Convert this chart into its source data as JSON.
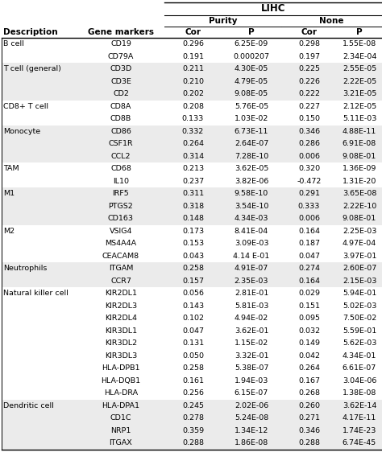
{
  "title": "LIHC",
  "rows": [
    [
      "B cell",
      "CD19",
      "0.296",
      "6.25E-09",
      "0.298",
      "1.55E-08"
    ],
    [
      "",
      "CD79A",
      "0.191",
      "0.000207",
      "0.197",
      "2.34E-04"
    ],
    [
      "T cell (general)",
      "CD3D",
      "0.211",
      "4.30E-05",
      "0.225",
      "2.55E-05"
    ],
    [
      "",
      "CD3E",
      "0.210",
      "4.79E-05",
      "0.226",
      "2.22E-05"
    ],
    [
      "",
      "CD2",
      "0.202",
      "9.08E-05",
      "0.222",
      "3.21E-05"
    ],
    [
      "CD8+ T cell",
      "CD8A",
      "0.208",
      "5.76E-05",
      "0.227",
      "2.12E-05"
    ],
    [
      "",
      "CD8B",
      "0.133",
      "1.03E-02",
      "0.150",
      "5.11E-03"
    ],
    [
      "Monocyte",
      "CD86",
      "0.332",
      "6.73E-11",
      "0.346",
      "4.88E-11"
    ],
    [
      "",
      "CSF1R",
      "0.264",
      "2.64E-07",
      "0.286",
      "6.91E-08"
    ],
    [
      "",
      "CCL2",
      "0.314",
      "7.28E-10",
      "0.006",
      "9.08E-01"
    ],
    [
      "TAM",
      "CD68",
      "0.213",
      "3.62E-05",
      "0.320",
      "1.36E-09"
    ],
    [
      "",
      "IL10",
      "0.237",
      "3.82E-06",
      "-0.472",
      "1.31E-20"
    ],
    [
      "M1",
      "IRF5",
      "0.311",
      "9.58E-10",
      "0.291",
      "3.65E-08"
    ],
    [
      "",
      "PTGS2",
      "0.318",
      "3.54E-10",
      "0.333",
      "2.22E-10"
    ],
    [
      "",
      "CD163",
      "0.148",
      "4.34E-03",
      "0.006",
      "9.08E-01"
    ],
    [
      "M2",
      "VSIG4",
      "0.173",
      "8.41E-04",
      "0.164",
      "2.25E-03"
    ],
    [
      "",
      "MS4A4A",
      "0.153",
      "3.09E-03",
      "0.187",
      "4.97E-04"
    ],
    [
      "",
      "CEACAM8",
      "0.043",
      "4.14 E-01",
      "0.047",
      "3.97E-01"
    ],
    [
      "Neutrophils",
      "ITGAM",
      "0.258",
      "4.91E-07",
      "0.274",
      "2.60E-07"
    ],
    [
      "",
      "CCR7",
      "0.157",
      "2.35E-03",
      "0.164",
      "2.15E-03"
    ],
    [
      "Natural killer cell",
      "KIR2DL1",
      "0.056",
      "2.81E-01",
      "0.029",
      "5.94E-01"
    ],
    [
      "",
      "KIR2DL3",
      "0.143",
      "5.81E-03",
      "0.151",
      "5.02E-03"
    ],
    [
      "",
      "KIR2DL4",
      "0.102",
      "4.94E-02",
      "0.095",
      "7.50E-02"
    ],
    [
      "",
      "KIR3DL1",
      "0.047",
      "3.62E-01",
      "0.032",
      "5.59E-01"
    ],
    [
      "",
      "KIR3DL2",
      "0.131",
      "1.15E-02",
      "0.149",
      "5.62E-03"
    ],
    [
      "",
      "KIR3DL3",
      "0.050",
      "3.32E-01",
      "0.042",
      "4.34E-01"
    ],
    [
      "",
      "HLA-DPB1",
      "0.258",
      "5.38E-07",
      "0.264",
      "6.61E-07"
    ],
    [
      "",
      "HLA-DQB1",
      "0.161",
      "1.94E-03",
      "0.167",
      "3.04E-06"
    ],
    [
      "",
      "HLA-DRA",
      "0.256",
      "6.15E-07",
      "0.268",
      "1.38E-08"
    ],
    [
      "Dendritic cell",
      "HLA-DPA1",
      "0.245",
      "2.02E-06",
      "0.260",
      "3.62E-14"
    ],
    [
      "",
      "CD1C",
      "0.278",
      "5.24E-08",
      "0.271",
      "4.17E-11"
    ],
    [
      "",
      "NRP1",
      "0.359",
      "1.34E-12",
      "0.346",
      "1.74E-23"
    ],
    [
      "",
      "ITGAX",
      "0.288",
      "1.86E-08",
      "0.288",
      "6.74E-45"
    ]
  ],
  "font_size": 6.8,
  "header_font_size": 7.5,
  "bg_white": "#ffffff",
  "bg_gray": "#ebebeb",
  "text_color": "#000000"
}
